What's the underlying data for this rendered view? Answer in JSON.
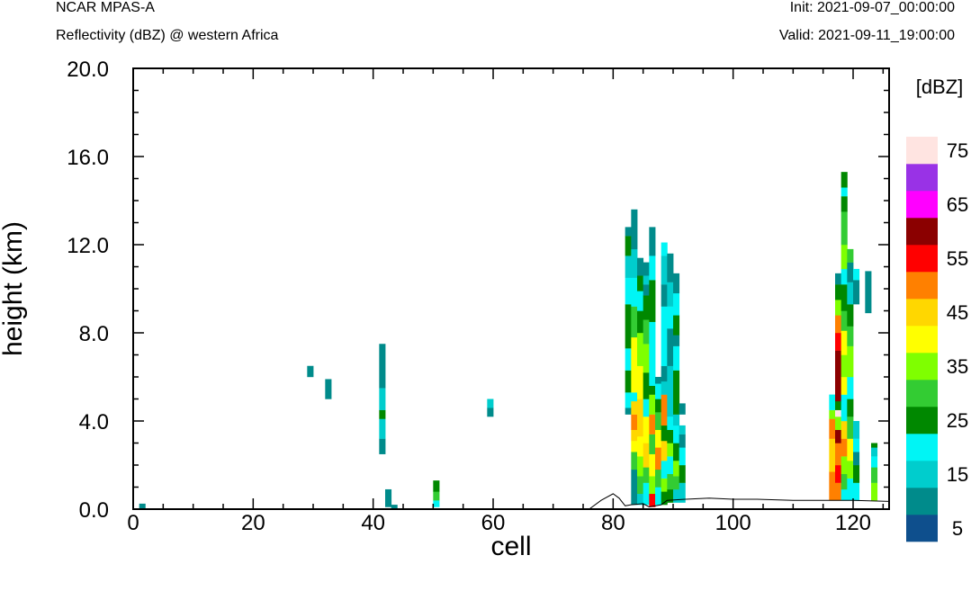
{
  "header": {
    "model": "NCAR MPAS-A",
    "subtitle": "Reflectivity (dBZ) @ western Africa",
    "init": "Init: 2021-09-07_00:00:00",
    "valid": "Valid: 2021-09-11_19:00:00"
  },
  "chart_data": {
    "type": "heatmap",
    "xlabel": "cell",
    "ylabel": "height (km)",
    "xlim": [
      0,
      126
    ],
    "ylim": [
      0,
      20
    ],
    "x_ticks": [
      0,
      20,
      40,
      60,
      80,
      100,
      120
    ],
    "y_ticks": [
      "0.0",
      "4.0",
      "8.0",
      "12.0",
      "16.0",
      "20.0"
    ],
    "colorbar": {
      "unit": "[dBZ]",
      "bins": [
        0,
        5,
        10,
        15,
        20,
        25,
        30,
        35,
        40,
        45,
        50,
        55,
        60,
        65,
        70,
        75,
        80
      ],
      "colors": [
        "#0e4f8d",
        "#008b8b",
        "#00cdcd",
        "#00f5f5",
        "#008800",
        "#33cc33",
        "#7fff00",
        "#ffff00",
        "#ffd700",
        "#ff8000",
        "#ff0000",
        "#8b0000",
        "#ff00ff",
        "#9932e6",
        "#ffe4e1"
      ],
      "labels": [
        "5",
        "15",
        "25",
        "35",
        "45",
        "55",
        "65",
        "75"
      ]
    },
    "terrain": [
      [
        0,
        0
      ],
      [
        76,
        0
      ],
      [
        78,
        0.4
      ],
      [
        80,
        0.7
      ],
      [
        81,
        0.5
      ],
      [
        82,
        0.15
      ],
      [
        83,
        0.2
      ],
      [
        85,
        0.25
      ],
      [
        86,
        0.1
      ],
      [
        88,
        0.2
      ],
      [
        89,
        0.4
      ],
      [
        92,
        0.45
      ],
      [
        96,
        0.5
      ],
      [
        100,
        0.45
      ],
      [
        104,
        0.45
      ],
      [
        110,
        0.4
      ],
      [
        116,
        0.4
      ],
      [
        120,
        0.4
      ],
      [
        126,
        0.35
      ]
    ],
    "cells": [
      {
        "x": 1,
        "y": [
          [
            0,
            0.25,
            5
          ]
        ]
      },
      {
        "x": 29,
        "y": [
          [
            6.0,
            6.5,
            5
          ]
        ]
      },
      {
        "x": 32,
        "y": [
          [
            5.0,
            5.9,
            5
          ]
        ]
      },
      {
        "x": 41,
        "y": [
          [
            2.5,
            3.2,
            5
          ],
          [
            3.2,
            4.1,
            10
          ],
          [
            4.1,
            4.5,
            20
          ],
          [
            4.5,
            5.5,
            10
          ],
          [
            5.5,
            7.5,
            5
          ]
        ]
      },
      {
        "x": 42,
        "y": [
          [
            0.1,
            0.9,
            5
          ]
        ]
      },
      {
        "x": 43,
        "y": [
          [
            0.05,
            0.2,
            5
          ]
        ]
      },
      {
        "x": 50,
        "y": [
          [
            0.1,
            0.4,
            15
          ],
          [
            0.4,
            0.8,
            25
          ],
          [
            0.8,
            1.3,
            20
          ]
        ]
      },
      {
        "x": 59,
        "y": [
          [
            4.2,
            4.6,
            5
          ],
          [
            4.6,
            5.0,
            10
          ]
        ]
      },
      {
        "x": 82,
        "y": [
          [
            4.3,
            4.6,
            5
          ],
          [
            4.6,
            5.3,
            15
          ],
          [
            5.3,
            6.3,
            20
          ],
          [
            6.3,
            7.3,
            15
          ],
          [
            7.3,
            9.3,
            20
          ],
          [
            9.3,
            10.5,
            15
          ],
          [
            10.5,
            11.5,
            10
          ],
          [
            11.5,
            12.4,
            20
          ],
          [
            12.4,
            12.8,
            5
          ]
        ]
      },
      {
        "x": 83,
        "y": [
          [
            0.2,
            1.8,
            5
          ],
          [
            1.8,
            2.6,
            25
          ],
          [
            2.6,
            3.1,
            35
          ],
          [
            3.1,
            3.6,
            40
          ],
          [
            3.6,
            4.3,
            45
          ],
          [
            4.3,
            4.9,
            40
          ],
          [
            4.9,
            5.3,
            15
          ],
          [
            5.3,
            7.8,
            35
          ],
          [
            7.8,
            9.2,
            25
          ],
          [
            9.2,
            10.5,
            15
          ],
          [
            10.5,
            11.8,
            10
          ],
          [
            11.8,
            13.6,
            5
          ]
        ]
      },
      {
        "x": 84,
        "y": [
          [
            0.2,
            0.7,
            10
          ],
          [
            0.7,
            1.5,
            25
          ],
          [
            1.5,
            2.4,
            30
          ],
          [
            2.4,
            3.3,
            35
          ],
          [
            3.3,
            5.0,
            40
          ],
          [
            5.0,
            6.5,
            35
          ],
          [
            6.5,
            8.0,
            30
          ],
          [
            8.0,
            9.0,
            20
          ],
          [
            9.0,
            9.9,
            15
          ],
          [
            9.9,
            10.6,
            20
          ],
          [
            10.6,
            11.4,
            5
          ]
        ]
      },
      {
        "x": 85,
        "y": [
          [
            0.2,
            1.2,
            15
          ],
          [
            1.2,
            1.9,
            25
          ],
          [
            1.9,
            3.0,
            40
          ],
          [
            3.0,
            4.2,
            35
          ],
          [
            4.2,
            5.0,
            15
          ],
          [
            5.0,
            6.2,
            20
          ],
          [
            6.2,
            7.5,
            30
          ],
          [
            7.5,
            8.6,
            25
          ],
          [
            8.6,
            9.7,
            20
          ],
          [
            9.7,
            10.2,
            5
          ],
          [
            10.2,
            10.6,
            10
          ],
          [
            10.6,
            11.2,
            5
          ]
        ]
      },
      {
        "x": 86,
        "y": [
          [
            0.1,
            0.7,
            50
          ],
          [
            0.7,
            1.5,
            30
          ],
          [
            1.5,
            2.5,
            35
          ],
          [
            2.5,
            3.4,
            25
          ],
          [
            3.4,
            4.3,
            45
          ],
          [
            4.3,
            5.2,
            30
          ],
          [
            5.2,
            5.6,
            20
          ],
          [
            5.6,
            8.5,
            15
          ],
          [
            8.5,
            10.4,
            20
          ],
          [
            10.4,
            11.5,
            15
          ],
          [
            11.5,
            12.8,
            5
          ]
        ]
      },
      {
        "x": 87,
        "y": [
          [
            0.2,
            1.0,
            15
          ],
          [
            1.0,
            1.8,
            25
          ],
          [
            1.8,
            2.8,
            45
          ],
          [
            2.8,
            3.6,
            35
          ],
          [
            3.6,
            4.4,
            25
          ],
          [
            4.4,
            5.0,
            20
          ],
          [
            5.0,
            5.7,
            15
          ],
          [
            5.7,
            6.0,
            5
          ]
        ]
      },
      {
        "x": 88,
        "y": [
          [
            0.2,
            0.8,
            20
          ],
          [
            0.8,
            1.4,
            30
          ],
          [
            1.4,
            2.2,
            15
          ],
          [
            2.2,
            3.1,
            40
          ],
          [
            3.1,
            3.8,
            20
          ],
          [
            3.8,
            5.2,
            45
          ],
          [
            5.2,
            5.8,
            10
          ],
          [
            5.8,
            6.5,
            5
          ],
          [
            6.5,
            9.2,
            15
          ],
          [
            9.2,
            10.2,
            5
          ],
          [
            10.2,
            11.5,
            10
          ],
          [
            11.5,
            12.1,
            15
          ]
        ]
      },
      {
        "x": 89,
        "y": [
          [
            0.3,
            0.9,
            20
          ],
          [
            0.9,
            1.6,
            25
          ],
          [
            1.6,
            2.4,
            15
          ],
          [
            2.4,
            3.0,
            30
          ],
          [
            3.0,
            3.6,
            20
          ],
          [
            3.6,
            4.2,
            15
          ],
          [
            4.2,
            6.5,
            10
          ],
          [
            6.5,
            8.2,
            5
          ],
          [
            8.2,
            9.2,
            15
          ],
          [
            9.2,
            10.3,
            10
          ],
          [
            10.3,
            11.6,
            5
          ]
        ]
      },
      {
        "x": 90,
        "y": [
          [
            0.3,
            0.9,
            10
          ],
          [
            0.9,
            1.5,
            25
          ],
          [
            1.5,
            2.2,
            30
          ],
          [
            2.2,
            3.0,
            20
          ],
          [
            3.0,
            3.8,
            15
          ],
          [
            3.8,
            4.3,
            10
          ],
          [
            4.3,
            6.3,
            20
          ],
          [
            6.3,
            7.4,
            15
          ],
          [
            7.4,
            7.9,
            5
          ],
          [
            7.9,
            8.8,
            20
          ],
          [
            8.8,
            9.8,
            15
          ],
          [
            9.8,
            10.7,
            5
          ]
        ]
      },
      {
        "x": 91,
        "y": [
          [
            0.3,
            1.2,
            10
          ],
          [
            1.2,
            2.0,
            20
          ],
          [
            2.0,
            2.8,
            15
          ],
          [
            2.8,
            3.4,
            5
          ],
          [
            3.4,
            3.8,
            10
          ],
          [
            4.3,
            4.8,
            5
          ]
        ]
      },
      {
        "x": 116,
        "y": [
          [
            0.4,
            1.7,
            45
          ],
          [
            1.7,
            3.2,
            40
          ],
          [
            3.2,
            4.1,
            45
          ],
          [
            4.1,
            4.5,
            30
          ],
          [
            4.5,
            5.2,
            15
          ]
        ]
      },
      {
        "x": 117,
        "y": [
          [
            0.4,
            1.2,
            45
          ],
          [
            1.2,
            2.0,
            50
          ],
          [
            2.0,
            3.0,
            45
          ],
          [
            3.0,
            3.6,
            55
          ],
          [
            3.6,
            4.2,
            30
          ],
          [
            4.2,
            4.5,
            70
          ],
          [
            4.5,
            4.9,
            20
          ],
          [
            4.9,
            6.0,
            55
          ],
          [
            6.0,
            7.2,
            55
          ],
          [
            7.2,
            8.0,
            50
          ],
          [
            8.0,
            8.8,
            45
          ],
          [
            8.8,
            9.5,
            30
          ],
          [
            9.5,
            10.2,
            20
          ],
          [
            10.2,
            10.7,
            5
          ]
        ]
      },
      {
        "x": 118,
        "y": [
          [
            0.4,
            0.9,
            15
          ],
          [
            0.9,
            1.6,
            25
          ],
          [
            1.6,
            2.4,
            30
          ],
          [
            2.4,
            3.2,
            45
          ],
          [
            3.2,
            4.0,
            40
          ],
          [
            4.0,
            5.2,
            15
          ],
          [
            5.2,
            6.0,
            35
          ],
          [
            6.0,
            7.0,
            30
          ],
          [
            7.0,
            8.1,
            35
          ],
          [
            8.1,
            9.0,
            25
          ],
          [
            9.0,
            10.2,
            20
          ],
          [
            10.2,
            10.9,
            15
          ],
          [
            10.9,
            12.0,
            30
          ],
          [
            12.0,
            13.5,
            25
          ],
          [
            13.5,
            14.2,
            20
          ],
          [
            14.2,
            14.6,
            15
          ],
          [
            14.6,
            15.3,
            20
          ]
        ]
      },
      {
        "x": 119,
        "y": [
          [
            0.4,
            1.4,
            15
          ],
          [
            1.4,
            2.2,
            30
          ],
          [
            2.2,
            3.2,
            35
          ],
          [
            3.2,
            4.2,
            25
          ],
          [
            4.2,
            5.0,
            20
          ],
          [
            5.0,
            6.0,
            15
          ],
          [
            6.0,
            7.4,
            30
          ],
          [
            7.4,
            8.3,
            25
          ],
          [
            8.3,
            9.3,
            20
          ],
          [
            9.3,
            10.3,
            10
          ],
          [
            10.3,
            11.2,
            5
          ],
          [
            11.2,
            11.8,
            25
          ]
        ]
      },
      {
        "x": 120,
        "y": [
          [
            0.4,
            1.2,
            15
          ],
          [
            1.2,
            2.0,
            20
          ],
          [
            2.0,
            2.6,
            5
          ],
          [
            2.6,
            3.2,
            15
          ],
          [
            3.2,
            4.0,
            10
          ],
          [
            9.3,
            10.4,
            5
          ],
          [
            10.4,
            10.9,
            15
          ]
        ]
      },
      {
        "x": 122,
        "y": [
          [
            8.9,
            10.8,
            5
          ]
        ]
      },
      {
        "x": 123,
        "y": [
          [
            0.4,
            1.2,
            30
          ],
          [
            1.2,
            1.9,
            25
          ],
          [
            1.9,
            2.4,
            15
          ],
          [
            2.4,
            2.8,
            10
          ],
          [
            2.8,
            3.0,
            20
          ]
        ]
      }
    ]
  }
}
